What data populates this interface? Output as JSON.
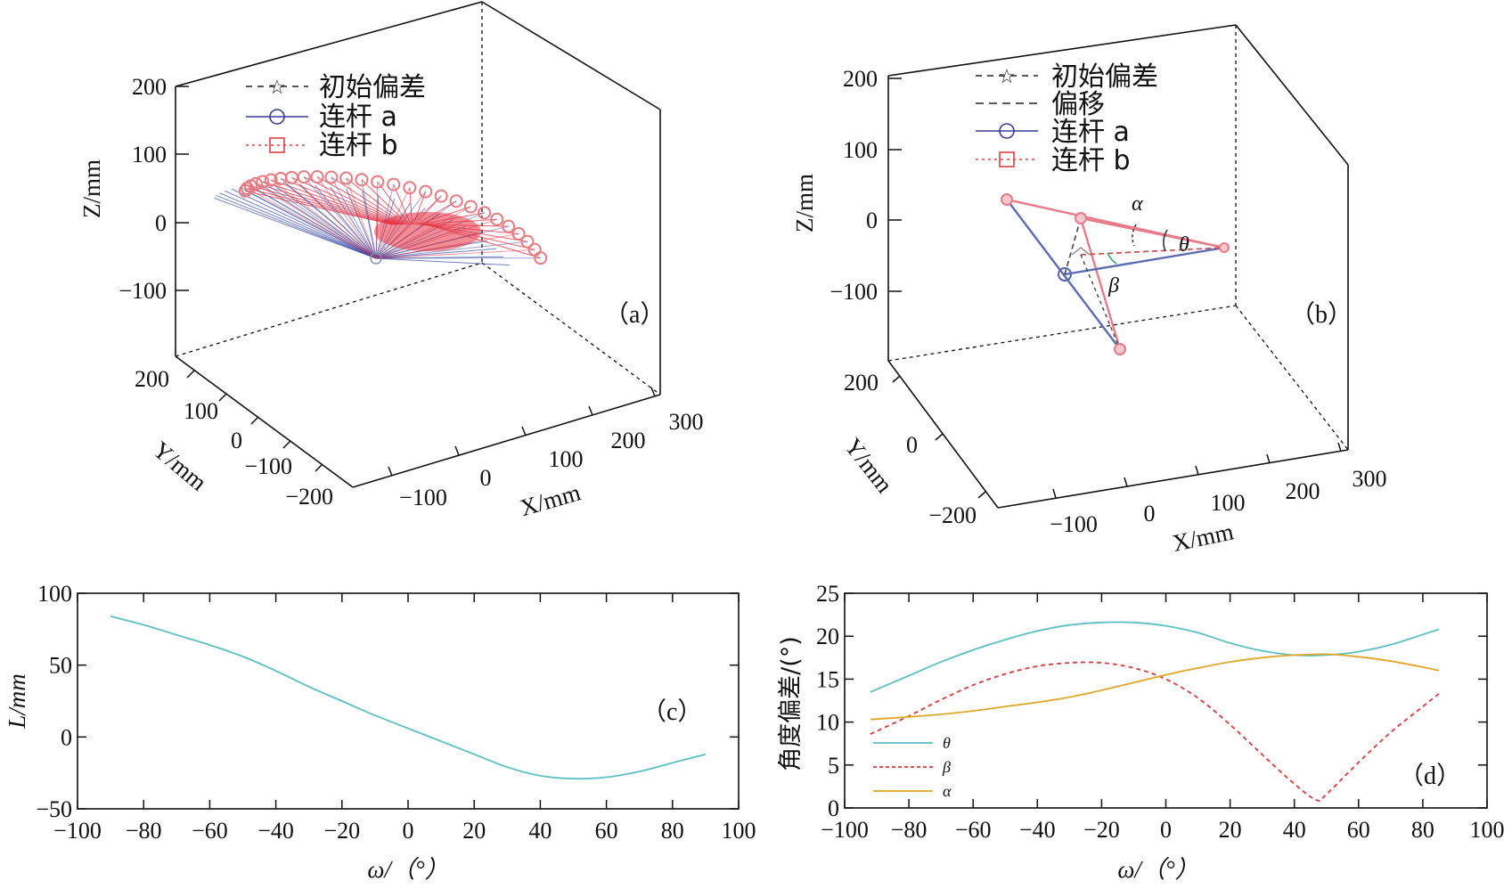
{
  "chart_data": [
    {
      "id": "a",
      "type": "line3d",
      "panel_label": "（a）",
      "xlabel": "X/mm",
      "ylabel": "Y/mm",
      "zlabel": "Z/mm",
      "x_ticks": [
        "−100",
        "0",
        "100",
        "200",
        "300"
      ],
      "y_ticks": [
        "200",
        "100",
        "0",
        "−100",
        "−200"
      ],
      "z_ticks": [
        "200",
        "100",
        "0",
        "−100"
      ],
      "legend": [
        {
          "text": "初始偏差",
          "style": "dashed",
          "marker": "star",
          "color": "#222222"
        },
        {
          "text": "连杆 a",
          "style": "solid",
          "marker": "circle",
          "color": "#3a3a9a"
        },
        {
          "text": "连杆 b",
          "style": "dotted",
          "marker": "square",
          "color": "#e04040"
        }
      ],
      "colors": {
        "link_a": "#3a4aa8",
        "link_b": "#e83040",
        "marker": "#e87a80"
      }
    },
    {
      "id": "b",
      "type": "line3d",
      "panel_label": "（b）",
      "xlabel": "X/mm",
      "ylabel": "Y/mm",
      "zlabel": "Z/mm",
      "x_ticks": [
        "−100",
        "0",
        "100",
        "200",
        "300"
      ],
      "y_ticks": [
        "200",
        "0",
        "−200"
      ],
      "z_ticks": [
        "200",
        "100",
        "0",
        "−100"
      ],
      "legend": [
        {
          "text": "初始偏差",
          "style": "dashed",
          "marker": "star",
          "color": "#222222"
        },
        {
          "text": "偏移",
          "style": "dashed",
          "marker": "none",
          "color": "#222222"
        },
        {
          "text": "连杆 a",
          "style": "solid",
          "marker": "circle",
          "color": "#3a3a9a"
        },
        {
          "text": "连杆 b",
          "style": "dotted",
          "marker": "square",
          "color": "#e04040"
        }
      ],
      "annotations": [
        "α",
        "θ",
        "β"
      ],
      "colors": {
        "link_a": "#5a6ab8",
        "link_b": "#e87a8a"
      }
    },
    {
      "id": "c",
      "type": "line",
      "panel_label": "（c）",
      "xlabel": "ω/（°）",
      "ylabel": "L/mm",
      "xlim": [
        -100,
        100
      ],
      "ylim": [
        -50,
        100
      ],
      "x_ticks": [
        -100,
        -80,
        -60,
        -40,
        -20,
        0,
        20,
        40,
        60,
        80,
        100
      ],
      "y_ticks": [
        -50,
        0,
        50,
        100
      ],
      "series": [
        {
          "color": "#5bbfc4",
          "style": "solid",
          "x": [
            -90,
            -80,
            -70,
            -60,
            -50,
            -40,
            -30,
            -20,
            -10,
            0,
            10,
            20,
            30,
            40,
            50,
            60,
            70,
            80,
            90
          ],
          "y": [
            84,
            78,
            71,
            64,
            56,
            46,
            35,
            25,
            15,
            6,
            -3,
            -12,
            -21,
            -27,
            -29,
            -28,
            -24,
            -18,
            -12
          ]
        }
      ]
    },
    {
      "id": "d",
      "type": "line",
      "panel_label": "（d）",
      "xlabel": "ω/（°）",
      "ylabel": "角度偏差/(°)",
      "xlim": [
        -100,
        100
      ],
      "ylim": [
        0,
        25
      ],
      "x_ticks": [
        -100,
        -80,
        -60,
        -40,
        -20,
        0,
        20,
        40,
        60,
        80,
        100
      ],
      "y_ticks": [
        0,
        5,
        10,
        15,
        20,
        25
      ],
      "series": [
        {
          "name": "θ",
          "color": "#5bbfc4",
          "style": "solid",
          "x": [
            -92,
            -80,
            -70,
            -60,
            -50,
            -40,
            -30,
            -20,
            -10,
            0,
            10,
            20,
            30,
            40,
            50,
            60,
            70,
            80,
            85
          ],
          "y": [
            13.5,
            15.4,
            17.0,
            18.4,
            19.6,
            20.6,
            21.3,
            21.6,
            21.6,
            21.2,
            20.4,
            19.2,
            18.3,
            17.8,
            17.8,
            18.2,
            19.0,
            20.2,
            20.8
          ]
        },
        {
          "name": "β",
          "color": "#d83a3a",
          "style": "dashed",
          "x": [
            -92,
            -80,
            -70,
            -60,
            -50,
            -40,
            -30,
            -20,
            -10,
            0,
            10,
            20,
            30,
            40,
            47,
            50,
            60,
            70,
            80,
            85
          ],
          "y": [
            8.6,
            10.7,
            12.6,
            14.3,
            15.6,
            16.5,
            16.9,
            16.9,
            16.3,
            15.0,
            12.8,
            9.7,
            6.2,
            2.8,
            0.9,
            1.6,
            5.3,
            8.8,
            11.8,
            13.3
          ]
        },
        {
          "name": "α",
          "color": "#e0a728",
          "style": "solid",
          "x": [
            -92,
            -80,
            -70,
            -60,
            -50,
            -40,
            -30,
            -20,
            -10,
            0,
            10,
            20,
            30,
            40,
            50,
            60,
            70,
            80,
            85
          ],
          "y": [
            10.3,
            10.6,
            10.9,
            11.3,
            11.8,
            12.3,
            12.9,
            13.7,
            14.6,
            15.5,
            16.3,
            17.0,
            17.5,
            17.8,
            17.9,
            17.6,
            17.1,
            16.4,
            16.0
          ]
        }
      ]
    }
  ]
}
